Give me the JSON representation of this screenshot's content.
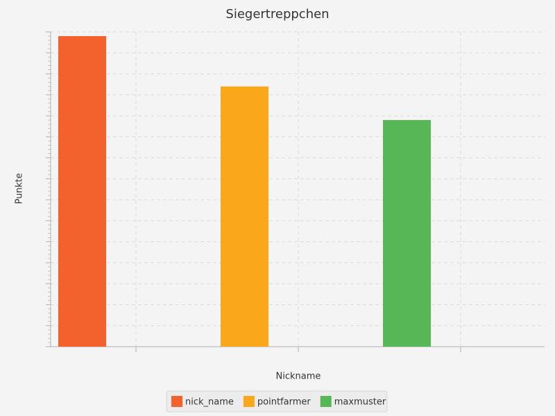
{
  "chart_data": {
    "type": "bar",
    "title": "Siegertreppchen",
    "x_label": "Nickname",
    "y_label": "Punkte",
    "categories": [
      null,
      null,
      null
    ],
    "series": [
      {
        "name": "nick_name",
        "color": "#f3622d",
        "values": [
          14.8,
          null,
          null
        ]
      },
      {
        "name": "pointfarmer",
        "color": "#fba71b",
        "values": [
          null,
          12.4,
          null
        ]
      },
      {
        "name": "maxmuster",
        "color": "#57b757",
        "values": [
          null,
          null,
          10.8
        ]
      }
    ],
    "ylim": [
      0,
      15
    ],
    "yticks": [
      0,
      1,
      2,
      3,
      4,
      5,
      6,
      7,
      8,
      9,
      10,
      11,
      12,
      13,
      14,
      15
    ],
    "grid": true,
    "legend": "bottom"
  }
}
